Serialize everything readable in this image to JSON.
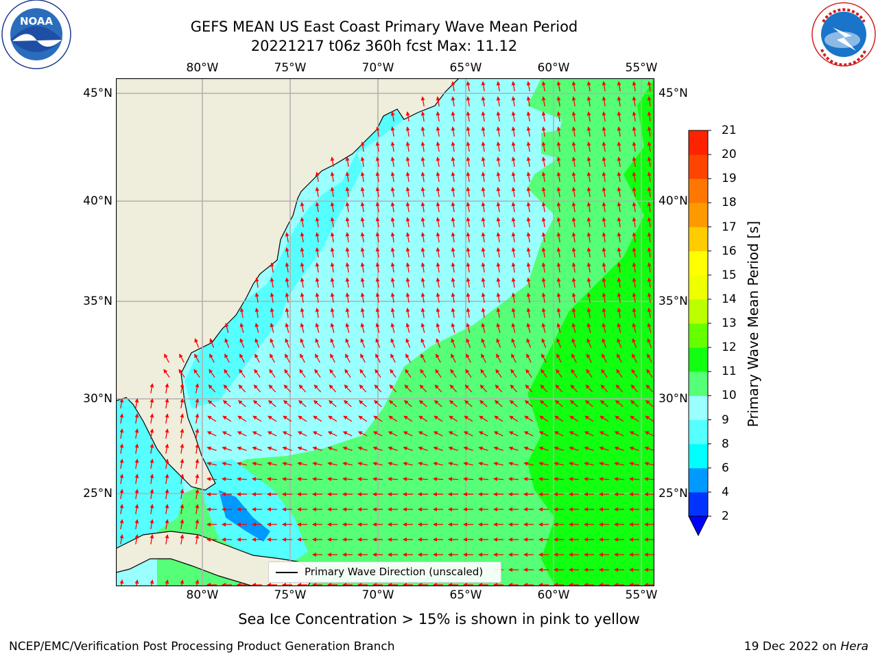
{
  "title": {
    "line1": "GEFS MEAN US East Coast Primary Wave Mean Period",
    "line2": "20221217 t06z 360h fcst   Max: 11.12"
  },
  "axes": {
    "lon_labels": [
      "80°W",
      "75°W",
      "70°W",
      "65°W",
      "60°W",
      "55°W"
    ],
    "lat_labels": [
      "45°N",
      "40°N",
      "35°N",
      "30°N",
      "25°N"
    ]
  },
  "colorbar": {
    "label": "Primary Wave Mean Period [s]",
    "ticks": [
      "2",
      "4",
      "6",
      "8",
      "9",
      "10",
      "11",
      "12",
      "13",
      "14",
      "15",
      "16",
      "17",
      "18",
      "19",
      "20",
      "21"
    ],
    "colors": [
      "#0033ff",
      "#0099ff",
      "#00ffff",
      "#55ffff",
      "#99ffff",
      "#55ff77",
      "#11ff11",
      "#66ff00",
      "#bbff00",
      "#eeff00",
      "#ffff00",
      "#ffcc00",
      "#ff9900",
      "#ff7700",
      "#ff4400",
      "#ff2200"
    ],
    "extend_min_color": "#0000ff"
  },
  "legend": {
    "text": "Primary Wave Direction (unscaled)"
  },
  "ice_note": "Sea Ice Concentration > 15% is shown in pink to yellow",
  "footer": {
    "credit": "NCEP/EMC/Verification Post Processing Product Generation Branch",
    "date": "19 Dec 2022 on",
    "machine": "Hera"
  },
  "logos": {
    "left": "NOAA",
    "right": "NATIONAL WEATHER SERVICE"
  },
  "colors": {
    "land": "#efeddb",
    "arrows": "#ff0000",
    "grid": "#b0b0b0"
  }
}
